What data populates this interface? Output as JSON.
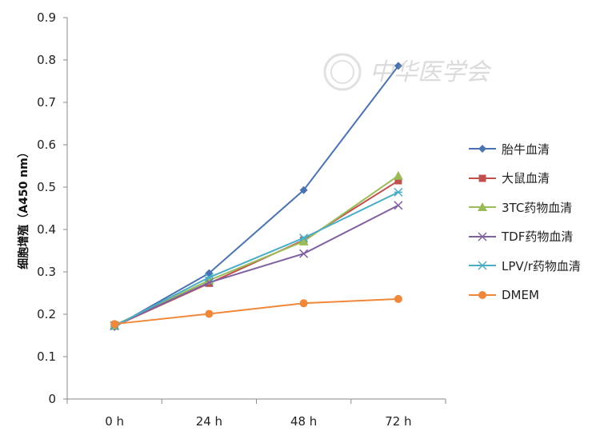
{
  "watermark": {
    "text": "中华医学会"
  },
  "chart_data": {
    "type": "line",
    "title": "",
    "xlabel": "",
    "ylabel": "细胞增殖（A450 nm）",
    "categories": [
      "0 h",
      "24 h",
      "48 h",
      "72 h"
    ],
    "ylim": [
      0,
      0.9
    ],
    "yticks": [
      "0",
      "0.1",
      "0.2",
      "0.3",
      "0.4",
      "0.5",
      "0.6",
      "0.7",
      "0.8",
      "0.9"
    ],
    "grid": false,
    "legend_position": "right",
    "series": [
      {
        "name": "胎牛血清",
        "color": "#4a72b0",
        "marker": "diamond",
        "values": [
          0.17,
          0.297,
          0.493,
          0.786
        ]
      },
      {
        "name": "大鼠血清",
        "color": "#c0504d",
        "marker": "square",
        "values": [
          0.172,
          0.273,
          0.375,
          0.515
        ]
      },
      {
        "name": "3TC药物血清",
        "color": "#9bbb59",
        "marker": "triangle",
        "values": [
          0.174,
          0.28,
          0.372,
          0.527
        ]
      },
      {
        "name": "TDF药物血清",
        "color": "#7f60a0",
        "marker": "x",
        "values": [
          0.173,
          0.275,
          0.343,
          0.457
        ]
      },
      {
        "name": "LPV/r药物血清",
        "color": "#4bacc6",
        "marker": "star",
        "values": [
          0.172,
          0.287,
          0.38,
          0.488
        ]
      },
      {
        "name": "DMEM",
        "color": "#f0883a",
        "marker": "circle",
        "values": [
          0.177,
          0.201,
          0.226,
          0.236
        ]
      }
    ]
  }
}
